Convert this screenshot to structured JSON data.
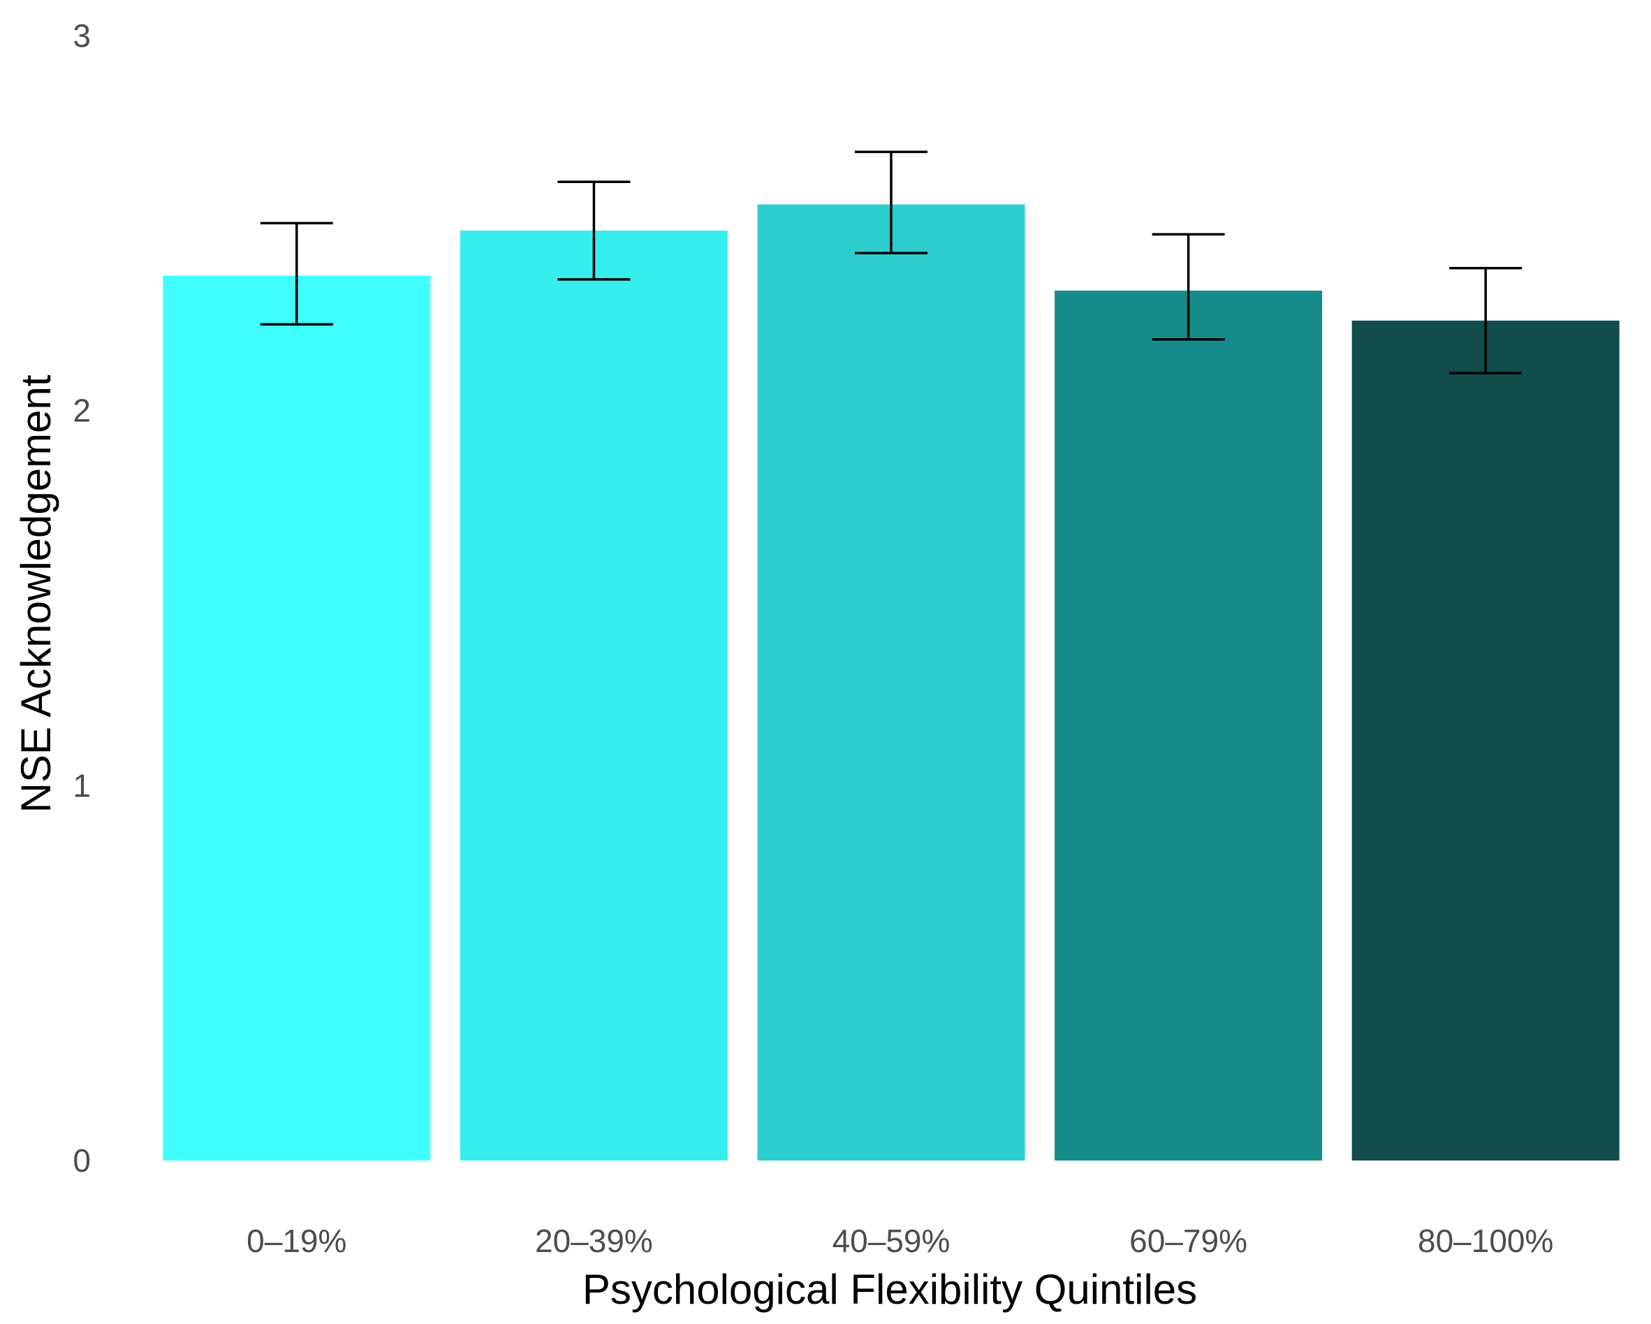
{
  "chart_data": {
    "type": "bar",
    "title": "",
    "xlabel": "Psychological Flexibility Quintiles",
    "ylabel": "NSE Acknowledgement",
    "categories": [
      "0–19%",
      "20–39%",
      "40–59%",
      "60–79%",
      "80–100%"
    ],
    "values": [
      2.36,
      2.48,
      2.55,
      2.32,
      2.24
    ],
    "error_bars": [
      {
        "low": 2.23,
        "high": 2.5
      },
      {
        "low": 2.35,
        "high": 2.61
      },
      {
        "low": 2.42,
        "high": 2.69
      },
      {
        "low": 2.19,
        "high": 2.47
      },
      {
        "low": 2.1,
        "high": 2.38
      }
    ],
    "colors": [
      "#3fffff",
      "#36eeee",
      "#2ecece",
      "#168c8a",
      "#124d4d"
    ],
    "ylim": [
      0,
      3
    ],
    "yticks": [
      0,
      1,
      2,
      3
    ],
    "ytick_labels": [
      "0",
      "1",
      "2",
      "3"
    ],
    "grid": false,
    "legend": "none"
  }
}
